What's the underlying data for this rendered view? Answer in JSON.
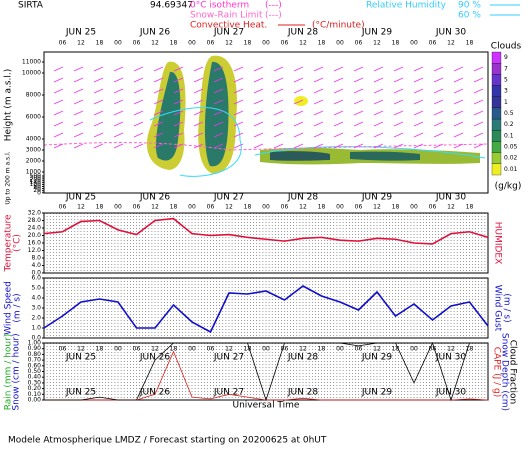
{
  "header": {
    "station": "SIRTA",
    "coords": "94.69347",
    "isotherm": "0°C isotherm",
    "isotherm_sym": "(---)",
    "snow_rain": "Snow-Rain Limit",
    "snow_rain_sym": "(---)",
    "convective": "Convective Heat.",
    "convective_unit": "(°C/minute)",
    "rh": "Relative Humidity",
    "rh_high": "90 %",
    "rh_low": "60 %"
  },
  "time_axis": {
    "days": [
      "JUN 25",
      "JUN 26",
      "JUN 27",
      "JUN 28",
      "JUN 29",
      "JUN 30"
    ],
    "xlabel": "Universal Time"
  },
  "chart_data": [
    {
      "type": "cloud",
      "ylabel": "Height (m a.s.l.)",
      "ylabel2": "Up to 200 m a.s.l.",
      "yticks": [
        11000,
        10000,
        8000,
        6000,
        4000,
        3000,
        2000,
        1000,
        500,
        300,
        200,
        140,
        100,
        60,
        40,
        20,
        0
      ],
      "colorbar": {
        "title": "Clouds",
        "unit": "(g/kg)",
        "ticks": [
          9,
          7,
          5,
          3,
          1,
          0.5,
          0.2,
          0.1,
          0.05,
          0.02,
          0.01
        ],
        "colors": [
          "#cc33ff",
          "#9933cc",
          "#6633cc",
          "#3333aa",
          "#333399",
          "#2a5a8a",
          "#2a7a7a",
          "#2a8a5a",
          "#44aa44",
          "#99cc33",
          "#eeee22"
        ]
      }
    },
    {
      "type": "line",
      "categories": [
        null,
        "06",
        "12",
        "18",
        "00",
        "06",
        "12",
        "18",
        "00",
        "06",
        "12",
        "18",
        "00",
        "06",
        "12",
        "18",
        "00",
        "06",
        "12",
        "18",
        "00",
        "06",
        "12",
        "18",
        null
      ],
      "series": [
        {
          "name": "Temperature",
          "color": "#e0103a",
          "values": [
            21,
            22,
            27.5,
            28,
            23,
            20.5,
            28,
            29,
            21,
            20,
            20.5,
            19,
            18,
            17,
            18.5,
            19,
            17.5,
            17,
            18.5,
            18,
            16,
            15.5,
            21,
            22,
            19
          ]
        }
      ],
      "yunit": "(°C)",
      "y2label": "HUMIDEX",
      "ylim": [
        0,
        32
      ],
      "yticks": [
        {
          "value": 32,
          "label": "32.0"
        },
        {
          "value": 28,
          "label": "28.0"
        },
        {
          "value": 24,
          "label": "24.0"
        },
        {
          "value": 20,
          "label": "20.0"
        },
        {
          "value": 16,
          "label": "16.0"
        },
        {
          "value": 12,
          "label": "12.0"
        },
        {
          "value": 8,
          "label": "8.0"
        },
        {
          "value": 4,
          "label": "4.0"
        },
        {
          "value": 0,
          "label": "0.0"
        }
      ]
    },
    {
      "type": "line",
      "categories": [
        null,
        "06",
        "12",
        "18",
        "00",
        "06",
        "12",
        "18",
        "00",
        "06",
        "12",
        "18",
        "00",
        "06",
        "12",
        "18",
        "00",
        "06",
        "12",
        "18",
        "00",
        "06",
        "12",
        "18",
        null
      ],
      "series": [
        {
          "name": "Wind Speed",
          "color": "#1010cc",
          "values": [
            1.0,
            2.2,
            3.6,
            3.9,
            3.6,
            1.0,
            1.0,
            3.3,
            1.6,
            0.6,
            4.5,
            4.4,
            4.7,
            3.8,
            5.2,
            4.2,
            3.6,
            2.8,
            4.6,
            2.2,
            3.4,
            1.8,
            3.2,
            3.6,
            1.2
          ]
        }
      ],
      "yunit": "(m / s)",
      "y2label": "Wind Gust",
      "y2unit": "(m / s)",
      "ylim": [
        0,
        6
      ],
      "yticks": [
        {
          "value": 6,
          "label": "6.0"
        },
        {
          "value": 5,
          "label": "5.0"
        },
        {
          "value": 4,
          "label": "4.0"
        },
        {
          "value": 3,
          "label": "3.0"
        },
        {
          "value": 2,
          "label": "2.0"
        },
        {
          "value": 1,
          "label": "1.0"
        },
        {
          "value": 0,
          "label": "0.0"
        }
      ]
    },
    {
      "type": "line",
      "categories": [
        null,
        "06",
        "12",
        "18",
        "00",
        "06",
        "12",
        "18",
        "00",
        "06",
        "12",
        "18",
        "00",
        "06",
        "12",
        "18",
        "00",
        "06",
        "12",
        "18",
        "00",
        "06",
        "12",
        "18",
        null
      ],
      "series": [
        {
          "name": "Rain (mm / hour)",
          "color": "#e02020",
          "values": [
            0,
            0,
            0,
            0,
            0,
            0,
            0.1,
            0.85,
            0.05,
            0.02,
            0.1,
            0.05,
            0,
            0,
            0.03,
            0,
            0,
            0,
            0,
            0,
            0,
            0,
            0,
            0.02,
            0
          ]
        },
        {
          "name": "Cloud Fraction",
          "color": "#000000",
          "values": [
            0,
            0,
            0,
            0.05,
            0,
            0,
            0.7,
            1,
            1,
            1,
            1,
            1,
            0,
            1,
            1,
            1,
            1,
            0.95,
            1,
            1,
            0.3,
            1,
            0,
            1,
            1
          ]
        }
      ],
      "ylabel_snow": "Snow (cm / hour)",
      "y2label_cape": "CAPE (J / g)",
      "y2label_depth": "Snow Depth (cm)",
      "ylim": [
        0,
        1
      ],
      "yticks": [
        {
          "value": 1,
          "label": "1.00"
        },
        {
          "value": 0.9,
          "label": "0.90"
        },
        {
          "value": 0.8,
          "label": "0.80"
        },
        {
          "value": 0.7,
          "label": "0.70"
        },
        {
          "value": 0.6,
          "label": "0.60"
        },
        {
          "value": 0.5,
          "label": "0.50"
        },
        {
          "value": 0.4,
          "label": "0.40"
        },
        {
          "value": 0.3,
          "label": "0.30"
        },
        {
          "value": 0.2,
          "label": "0.20"
        },
        {
          "value": 0.1,
          "label": "0.10"
        },
        {
          "value": 0,
          "label": "0.00"
        }
      ]
    }
  ],
  "footer": "Modele Atmospherique LMDZ / Forecast starting on 20200625 at 0hUT"
}
